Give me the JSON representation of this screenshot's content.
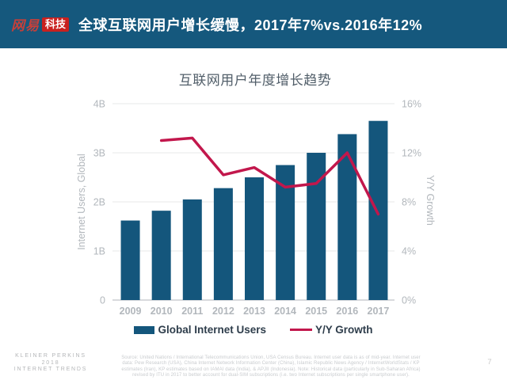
{
  "colors": {
    "header_bg": "#15587d",
    "logo_red": "#c9211f",
    "logo_brand_red": "#c5403a",
    "bar": "#14567c",
    "line": "#c2174c",
    "grid": "#e7e8ea",
    "axis_line": "#cbced2",
    "tick_text": "#b2b7bc"
  },
  "header": {
    "logo_brand": "网易",
    "logo_badge": "科技",
    "title": "全球互联网用户增长缓慢，2017年7%vs.2016年12%"
  },
  "chart_data": {
    "type": "bar+line combo, dual axis",
    "title": "互联网用户年度增长趋势",
    "categories": [
      "2009",
      "2010",
      "2011",
      "2012",
      "2013",
      "2014",
      "2015",
      "2016",
      "2017"
    ],
    "series": [
      {
        "name": "Global Internet Users",
        "type": "bar",
        "axis": "left",
        "values": [
          1.62,
          1.82,
          2.05,
          2.28,
          2.5,
          2.75,
          3.0,
          3.38,
          3.65
        ]
      },
      {
        "name": "Y/Y Growth",
        "type": "line",
        "axis": "right",
        "values": [
          null,
          13.0,
          13.2,
          10.2,
          10.8,
          9.2,
          9.5,
          12.0,
          7.0
        ]
      }
    ],
    "left_axis": {
      "label": "Internet Users, Global",
      "ticks": [
        "0",
        "1B",
        "2B",
        "3B",
        "4B"
      ],
      "range": [
        0,
        4
      ],
      "unit": "billions"
    },
    "right_axis": {
      "label": "Y/Y Growth",
      "ticks": [
        "0%",
        "4%",
        "8%",
        "12%",
        "16%"
      ],
      "range": [
        0,
        16
      ],
      "unit": "percent"
    },
    "grid": "horizontal gridlines on",
    "legend_position": "bottom center"
  },
  "footer": {
    "brand_lines": [
      "KLEINER PERKINS",
      "2018",
      "INTERNET TRENDS"
    ],
    "source_lines": [
      "Source: United Nations / International Telecommunications Union, USA Census Bureau. Internet user data is as of mid-year. Internet user",
      "data: Pew Research (USA), China Internet Network Information Center (China), Islamic Republic News Agency / InternetWorldStats / KP",
      "estimates (Iran), KP estimates based on IAMAI data (India), & APJII (Indonesia).  Note: Historical data (particularly in Sub-Saharan Africa)",
      "revised by ITU in 2017 to better account for dual-SIM subscriptions (i.e. two Internet subscriptions per single smartphone user)."
    ],
    "page_number": "7"
  }
}
